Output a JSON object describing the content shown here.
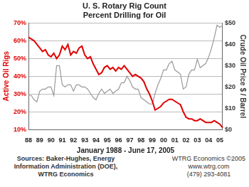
{
  "chart_data": {
    "type": "line",
    "title": "U. S. Rotary Rig Count",
    "subtitle": "Percent Drilling for Oil",
    "xlabel": "January 1988 - June 17, 2005",
    "ylabel": "Active Oil Rigs",
    "y2label": "Crude Oil Price $ / Barrel",
    "annotations": [
      "Sources: Baker-Hughes, Energy Information Administration (DOE), WTRG Economics",
      "WTRG Economics ©2005",
      "www.wtrg.com",
      "(479) 293-4081"
    ],
    "categories": [
      "88",
      null,
      null,
      null,
      "89",
      null,
      null,
      null,
      "90",
      null,
      null,
      null,
      "91",
      null,
      null,
      null,
      "92",
      null,
      null,
      null,
      "93",
      null,
      null,
      null,
      "94",
      null,
      null,
      null,
      "95",
      null,
      null,
      null,
      "96",
      null,
      null,
      null,
      "97",
      null,
      null,
      null,
      "98",
      null,
      null,
      null,
      "99",
      null,
      null,
      null,
      "00",
      null,
      null,
      null,
      "01",
      null,
      null,
      null,
      "02",
      null,
      null,
      null,
      "03",
      null,
      null,
      null,
      "04",
      null,
      null,
      null,
      "05",
      null
    ],
    "series": [
      {
        "name": "Active Oil Rigs",
        "color": "#e00000",
        "axis": "y",
        "values": [
          62,
          61,
          60,
          58,
          56,
          54,
          55,
          52,
          51,
          53,
          50,
          52,
          57,
          55,
          58,
          52,
          54,
          53,
          56,
          57,
          52,
          50,
          51,
          47,
          44,
          41,
          42,
          45,
          46,
          44,
          45,
          43,
          45,
          44,
          46,
          44,
          42,
          40,
          41,
          40,
          39,
          37,
          33,
          30,
          26,
          21,
          22,
          23,
          25,
          26,
          27,
          27,
          26,
          25,
          24,
          20,
          17,
          16,
          16,
          15,
          15,
          16,
          15,
          14,
          14,
          14,
          15,
          14,
          13,
          11
        ]
      },
      {
        "name": "Crude Oil Price $ / Barrel",
        "color": "#999999",
        "axis": "y2",
        "values": [
          16,
          16,
          14,
          13,
          18,
          19,
          19,
          20,
          20,
          16,
          30,
          30,
          21,
          20,
          21,
          21,
          18,
          21,
          21,
          20,
          20,
          19,
          17,
          15,
          14,
          17,
          19,
          17,
          18,
          19,
          17,
          18,
          19,
          22,
          22,
          25,
          23,
          20,
          19,
          19,
          15,
          14,
          13,
          12,
          12,
          17,
          21,
          24,
          28,
          28,
          31,
          32,
          28,
          27,
          26,
          19,
          20,
          26,
          28,
          28,
          33,
          29,
          30,
          31,
          34,
          38,
          43,
          49,
          48,
          49
        ]
      }
    ],
    "ylim": [
      10,
      70
    ],
    "yticks": [
      {
        "value": 10,
        "label": "10%"
      },
      {
        "value": 20,
        "label": "20%"
      },
      {
        "value": 30,
        "label": "30%"
      },
      {
        "value": 40,
        "label": "40%"
      },
      {
        "value": 50,
        "label": "50%"
      },
      {
        "value": 60,
        "label": "60%"
      },
      {
        "value": 70,
        "label": "70%"
      }
    ],
    "y2lim": [
      0,
      50
    ],
    "y2ticks": [
      {
        "value": 0,
        "label": "$0"
      },
      {
        "value": 10,
        "label": "$10"
      },
      {
        "value": 20,
        "label": "$20"
      },
      {
        "value": 30,
        "label": "$30"
      },
      {
        "value": 40,
        "label": "$40"
      },
      {
        "value": 50,
        "label": "$50"
      }
    ],
    "grid": true
  }
}
